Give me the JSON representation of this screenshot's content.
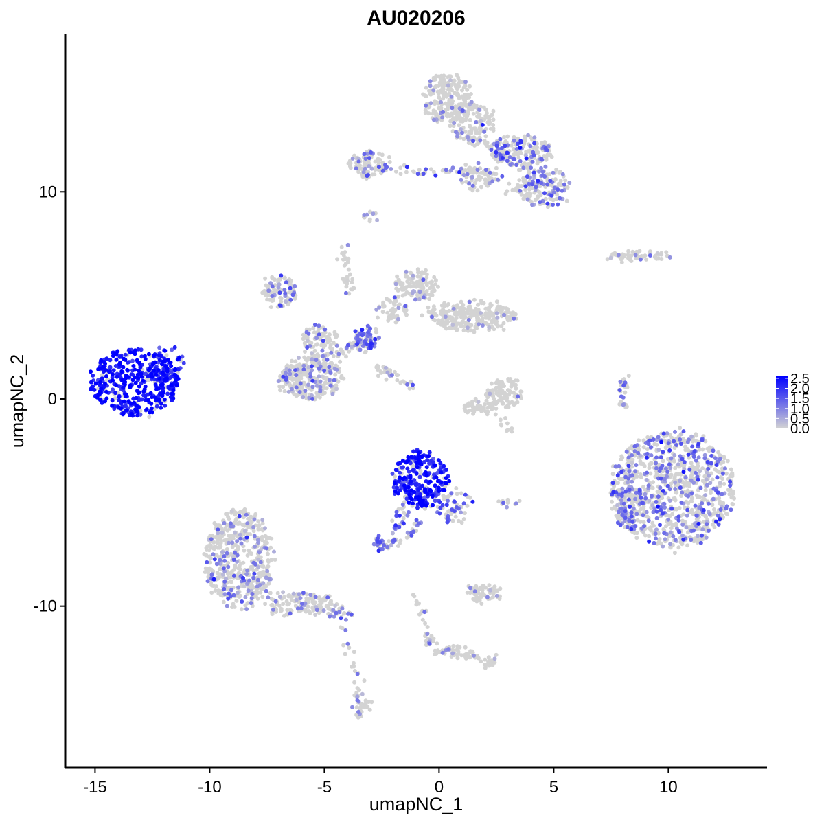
{
  "chart_data": {
    "type": "scatter",
    "title": "AU020206",
    "xlabel": "umapNC_1",
    "ylabel": "umapNC_2",
    "xlim": [
      -16.3,
      14.3
    ],
    "ylim": [
      -17.8,
      17.6
    ],
    "x_ticks": [
      -15,
      -10,
      -5,
      0,
      5,
      10
    ],
    "x_tick_labels": [
      "-15",
      "-10",
      "-5",
      "0",
      "5",
      "10"
    ],
    "y_ticks": [
      -10,
      0,
      10
    ],
    "y_tick_labels": [
      "-10",
      "0",
      "10"
    ],
    "grid": false,
    "color_scale": {
      "low_color": "#d3d3d3",
      "high_color": "#0000ff",
      "min": 0.0,
      "max": 2.6,
      "ticks": [
        0.0,
        0.5,
        1.0,
        1.5,
        2.0,
        2.5
      ],
      "tick_labels": [
        "0.0",
        "0.5",
        "1.0",
        "1.5",
        "2.0",
        "2.5"
      ],
      "legend_position": "right"
    },
    "clusters": [
      {
        "cx": -13.3,
        "cy": 0.8,
        "rx": 1.9,
        "ry": 1.6,
        "n": 420,
        "expr_mean": 2.1
      },
      {
        "cx": -11.9,
        "cy": 1.6,
        "rx": 0.8,
        "ry": 0.9,
        "n": 70,
        "expr_mean": 1.8
      },
      {
        "cx": -0.8,
        "cy": -3.9,
        "rx": 1.2,
        "ry": 1.4,
        "n": 260,
        "expr_mean": 2.0
      },
      {
        "cx": 0.6,
        "cy": -5.1,
        "rx": 0.8,
        "ry": 0.9,
        "n": 60,
        "expr_mean": 1.2
      },
      {
        "cx": -2.3,
        "cy": -6.9,
        "rx": 0.6,
        "ry": 0.4,
        "n": 40,
        "expr_mean": 1.1
      },
      {
        "cx": -1.3,
        "cy": -5.8,
        "rx": 0.4,
        "ry": 0.9,
        "n": 25,
        "expr_mean": 1.0
      },
      {
        "cx": 10.2,
        "cy": -4.4,
        "rx": 2.7,
        "ry": 2.8,
        "n": 900,
        "expr_mean": 0.8
      },
      {
        "cx": 8.2,
        "cy": -4.9,
        "rx": 0.6,
        "ry": 1.5,
        "n": 90,
        "expr_mean": 0.9
      },
      {
        "cx": -8.7,
        "cy": -7.7,
        "rx": 1.5,
        "ry": 2.4,
        "n": 520,
        "expr_mean": 0.5
      },
      {
        "cx": -6.1,
        "cy": -9.9,
        "rx": 1.6,
        "ry": 0.5,
        "n": 140,
        "expr_mean": 0.4
      },
      {
        "cx": -4.3,
        "cy": -10.4,
        "rx": 0.5,
        "ry": 0.3,
        "n": 25,
        "expr_mean": 0.9
      },
      {
        "cx": -3.4,
        "cy": -14.8,
        "rx": 0.35,
        "ry": 0.7,
        "n": 35,
        "expr_mean": 0.4
      },
      {
        "cx": -5.6,
        "cy": 1.0,
        "rx": 1.4,
        "ry": 1.0,
        "n": 300,
        "expr_mean": 0.5
      },
      {
        "cx": -5.2,
        "cy": 2.8,
        "rx": 0.8,
        "ry": 0.8,
        "n": 90,
        "expr_mean": 0.6
      },
      {
        "cx": -3.2,
        "cy": 2.9,
        "rx": 0.6,
        "ry": 0.6,
        "n": 60,
        "expr_mean": 1.2
      },
      {
        "cx": -7.0,
        "cy": 5.2,
        "rx": 0.8,
        "ry": 0.7,
        "n": 90,
        "expr_mean": 0.6
      },
      {
        "cx": -1.0,
        "cy": 5.5,
        "rx": 0.9,
        "ry": 0.8,
        "n": 110,
        "expr_mean": 0.3
      },
      {
        "cx": 1.4,
        "cy": 4.0,
        "rx": 2.0,
        "ry": 0.7,
        "n": 260,
        "expr_mean": 0.2
      },
      {
        "cx": -2.0,
        "cy": 4.3,
        "rx": 0.7,
        "ry": 0.6,
        "n": 50,
        "expr_mean": 0.4
      },
      {
        "cx": 0.4,
        "cy": 14.5,
        "rx": 1.1,
        "ry": 1.2,
        "n": 200,
        "expr_mean": 0.3
      },
      {
        "cx": 1.5,
        "cy": 13.3,
        "rx": 1.0,
        "ry": 1.0,
        "n": 110,
        "expr_mean": 0.4
      },
      {
        "cx": 3.6,
        "cy": 11.9,
        "rx": 1.3,
        "ry": 0.8,
        "n": 180,
        "expr_mean": 0.9
      },
      {
        "cx": 4.6,
        "cy": 10.2,
        "rx": 1.1,
        "ry": 1.0,
        "n": 160,
        "expr_mean": 0.8
      },
      {
        "cx": -3.0,
        "cy": 11.3,
        "rx": 0.9,
        "ry": 0.6,
        "n": 90,
        "expr_mean": 0.6
      },
      {
        "cx": 1.8,
        "cy": 10.6,
        "rx": 0.9,
        "ry": 0.5,
        "n": 60,
        "expr_mean": 0.4
      },
      {
        "cx": 2.9,
        "cy": 0.3,
        "rx": 0.8,
        "ry": 0.7,
        "n": 90,
        "expr_mean": 0.1
      },
      {
        "cx": 1.8,
        "cy": -0.4,
        "rx": 0.8,
        "ry": 0.4,
        "n": 50,
        "expr_mean": 0.1
      },
      {
        "cx": 1.9,
        "cy": -9.4,
        "rx": 0.8,
        "ry": 0.4,
        "n": 60,
        "expr_mean": 0.2
      },
      {
        "cx": 8.7,
        "cy": 6.9,
        "rx": 1.4,
        "ry": 0.25,
        "n": 60,
        "expr_mean": 0.4
      },
      {
        "cx": 8.1,
        "cy": 0.3,
        "rx": 0.25,
        "ry": 0.8,
        "n": 30,
        "expr_mean": 0.8
      },
      {
        "cx": -3.0,
        "cy": 8.8,
        "rx": 0.3,
        "ry": 0.3,
        "n": 10,
        "expr_mean": 0.5
      },
      {
        "cx": 0.7,
        "cy": -12.2,
        "rx": 0.8,
        "ry": 0.3,
        "n": 30,
        "expr_mean": 0.2
      },
      {
        "cx": 2.3,
        "cy": -12.6,
        "rx": 0.4,
        "ry": 0.3,
        "n": 15,
        "expr_mean": 0.3
      },
      {
        "cx": 3.0,
        "cy": -5.0,
        "rx": 0.4,
        "ry": 0.15,
        "n": 10,
        "expr_mean": 0.5
      }
    ],
    "bridges": [
      {
        "from": [
          -2.8,
          1.6
        ],
        "to": [
          -1.2,
          0.6
        ],
        "n": 40,
        "expr_mean": 0.5
      },
      {
        "from": [
          -4.2,
          7.6
        ],
        "to": [
          -3.8,
          5.0
        ],
        "n": 30,
        "expr_mean": 0.6
      },
      {
        "from": [
          -3.0,
          3.0
        ],
        "to": [
          -4.6,
          2.0
        ],
        "n": 40,
        "expr_mean": 0.8
      },
      {
        "from": [
          -3.0,
          11.1
        ],
        "to": [
          2.0,
          11.0
        ],
        "n": 60,
        "expr_mean": 0.8
      },
      {
        "from": [
          1.0,
          13.0
        ],
        "to": [
          3.5,
          11.2
        ],
        "n": 40,
        "expr_mean": 0.5
      },
      {
        "from": [
          3.0,
          10.0
        ],
        "to": [
          4.2,
          10.5
        ],
        "n": 25,
        "expr_mean": 0.6
      },
      {
        "from": [
          -1.0,
          -9.5
        ],
        "to": [
          -0.3,
          -12.0
        ],
        "n": 30,
        "expr_mean": 0.3
      },
      {
        "from": [
          -0.3,
          -12.0
        ],
        "to": [
          2.4,
          -12.7
        ],
        "n": 30,
        "expr_mean": 0.3
      },
      {
        "from": [
          -4.2,
          -11.0
        ],
        "to": [
          -3.5,
          -14.3
        ],
        "n": 20,
        "expr_mean": 0.3
      },
      {
        "from": [
          -1.5,
          -4.8
        ],
        "to": [
          -2.0,
          -6.6
        ],
        "n": 20,
        "expr_mean": 1.0
      },
      {
        "from": [
          2.6,
          -0.6
        ],
        "to": [
          3.0,
          -1.6
        ],
        "n": 10,
        "expr_mean": 0.1
      }
    ]
  }
}
